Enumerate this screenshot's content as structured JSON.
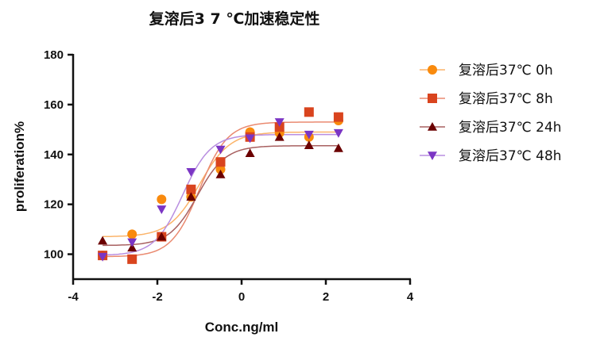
{
  "chart_data": {
    "type": "scatter",
    "title": "复溶后3 7 ℃加速稳定性",
    "xlabel": "Conc.ng/ml",
    "ylabel": "proliferation%",
    "xlim": [
      -4,
      4
    ],
    "ylim": [
      90,
      180
    ],
    "xticks": [
      "-4",
      "-2",
      "0",
      "2",
      "4"
    ],
    "yticks": [
      "100",
      "120",
      "140",
      "160",
      "180"
    ],
    "grid": false,
    "legend_position": "right",
    "x": [
      -3.3,
      -2.6,
      -1.9,
      -1.2,
      -0.5,
      0.2,
      0.9,
      1.6,
      2.3
    ],
    "series": [
      {
        "name": "复溶后37℃  0h",
        "marker": "circle",
        "color": "#f98a0d",
        "line_color": "#fbb46a",
        "values": [
          99.5,
          108,
          122,
          123,
          134,
          149,
          148.6,
          147,
          153.6
        ],
        "fit": {
          "bottom": 107,
          "top": 149,
          "logEC50": -1.0,
          "hill": 1.2
        }
      },
      {
        "name": "复溶后37℃  8h",
        "marker": "square",
        "color": "#d9441e",
        "line_color": "#ea8a70",
        "values": [
          99.5,
          98,
          107,
          126,
          137,
          147,
          151,
          157,
          155
        ],
        "fit": {
          "bottom": 99,
          "top": 153,
          "logEC50": -1.0,
          "hill": 1.3
        }
      },
      {
        "name": "复溶后37℃  24h",
        "marker": "triangle-up",
        "color": "#6b0000",
        "line_color": "#a86060",
        "values": [
          105.4,
          102.6,
          107,
          123,
          132,
          140.5,
          147,
          143.7,
          142.5
        ],
        "fit": {
          "bottom": 103.5,
          "top": 143.5,
          "logEC50": -1.05,
          "hill": 1.3
        }
      },
      {
        "name": "复溶后37℃  48h",
        "marker": "triangle-down",
        "color": "#7b35c4",
        "line_color": "#b88ee0",
        "values": [
          99,
          104.8,
          118,
          133,
          142,
          146.5,
          153,
          148,
          148.6
        ],
        "fit": {
          "bottom": 99.5,
          "top": 148,
          "logEC50": -1.4,
          "hill": 1.3
        }
      }
    ]
  }
}
